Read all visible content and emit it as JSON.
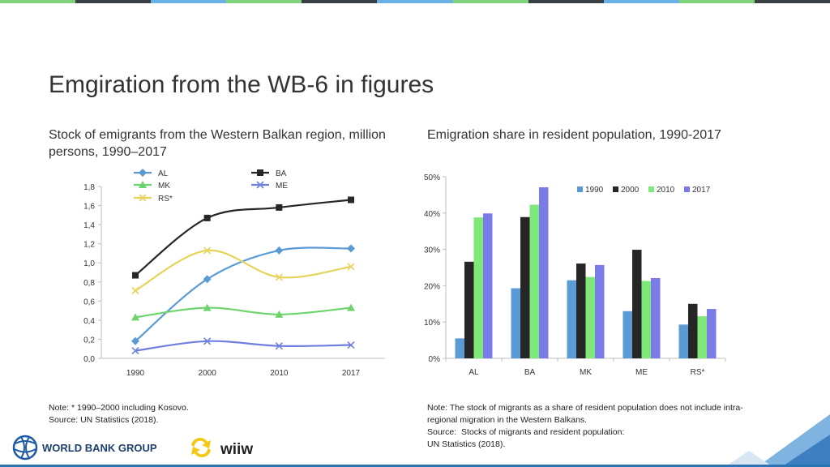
{
  "page": {
    "title": "Emgiration from the WB-6 in figures",
    "left_subtitle": "Stock of emigrants from the Western Balkan region, million persons, 1990–2017",
    "right_subtitle": "Emigration share in resident population, 1990-2017",
    "left_note": [
      "Note: * 1990–2000 including Kosovo.",
      "Source: UN Statistics (2018)."
    ],
    "right_note": [
      "Note: The stock of migrants as a share of resident population does not include intra-",
      "regional migration in the Western Balkans.",
      "Source:  Stocks of migrants and resident population:",
      "UN Statistics (2018)."
    ],
    "logos": {
      "world_bank": "WORLD BANK GROUP",
      "wiiw": "wiiw"
    },
    "top_bar_colors": [
      "#7fd37a",
      "#3a3f44",
      "#6ab1e6",
      "#7fd37a",
      "#3a3f44",
      "#6ab1e6",
      "#7fd37a",
      "#3a3f44",
      "#6ab1e6",
      "#7fd37a",
      "#3a3f44"
    ]
  },
  "chart_data": [
    {
      "type": "line",
      "x": [
        "1990",
        "2000",
        "2010",
        "2017"
      ],
      "ylim": [
        0,
        1.8
      ],
      "yticks": [
        "0,0",
        "0,2",
        "0,4",
        "0,6",
        "0,8",
        "1,0",
        "1,2",
        "1,4",
        "1,6",
        "1,8"
      ],
      "series": [
        {
          "name": "AL",
          "values": [
            0.18,
            0.83,
            1.13,
            1.15
          ],
          "color": "#5b9bd5",
          "marker": "diamond"
        },
        {
          "name": "BA",
          "values": [
            0.87,
            1.47,
            1.58,
            1.66
          ],
          "color": "#262626",
          "marker": "square"
        },
        {
          "name": "MK",
          "values": [
            0.43,
            0.53,
            0.46,
            0.53
          ],
          "color": "#70d46e",
          "marker": "triangle"
        },
        {
          "name": "ME",
          "values": [
            0.08,
            0.18,
            0.13,
            0.14
          ],
          "color": "#6f7fe0",
          "marker": "x"
        },
        {
          "name": "RS*",
          "values": [
            0.71,
            1.13,
            0.85,
            0.96
          ],
          "color": "#e6d45a",
          "marker": "x"
        }
      ],
      "grid": false,
      "legend": "top"
    },
    {
      "type": "bar",
      "categories": [
        "AL",
        "BA",
        "MK",
        "ME",
        "RS*"
      ],
      "ylim": [
        0,
        50
      ],
      "yticks": [
        "0%",
        "10%",
        "20%",
        "30%",
        "40%",
        "50%"
      ],
      "series": [
        {
          "name": "1990",
          "values": [
            5.5,
            19.3,
            21.5,
            13.0,
            9.3
          ],
          "color": "#5b9bd5"
        },
        {
          "name": "2000",
          "values": [
            26.6,
            38.9,
            26.1,
            29.9,
            15.0
          ],
          "color": "#262626"
        },
        {
          "name": "2010",
          "values": [
            38.8,
            42.3,
            22.4,
            21.3,
            11.6
          ],
          "color": "#7fe87a"
        },
        {
          "name": "2017",
          "values": [
            39.9,
            47.1,
            25.7,
            22.1,
            13.6
          ],
          "color": "#7b7be8"
        }
      ],
      "grid": false,
      "legend": "top-right"
    }
  ]
}
